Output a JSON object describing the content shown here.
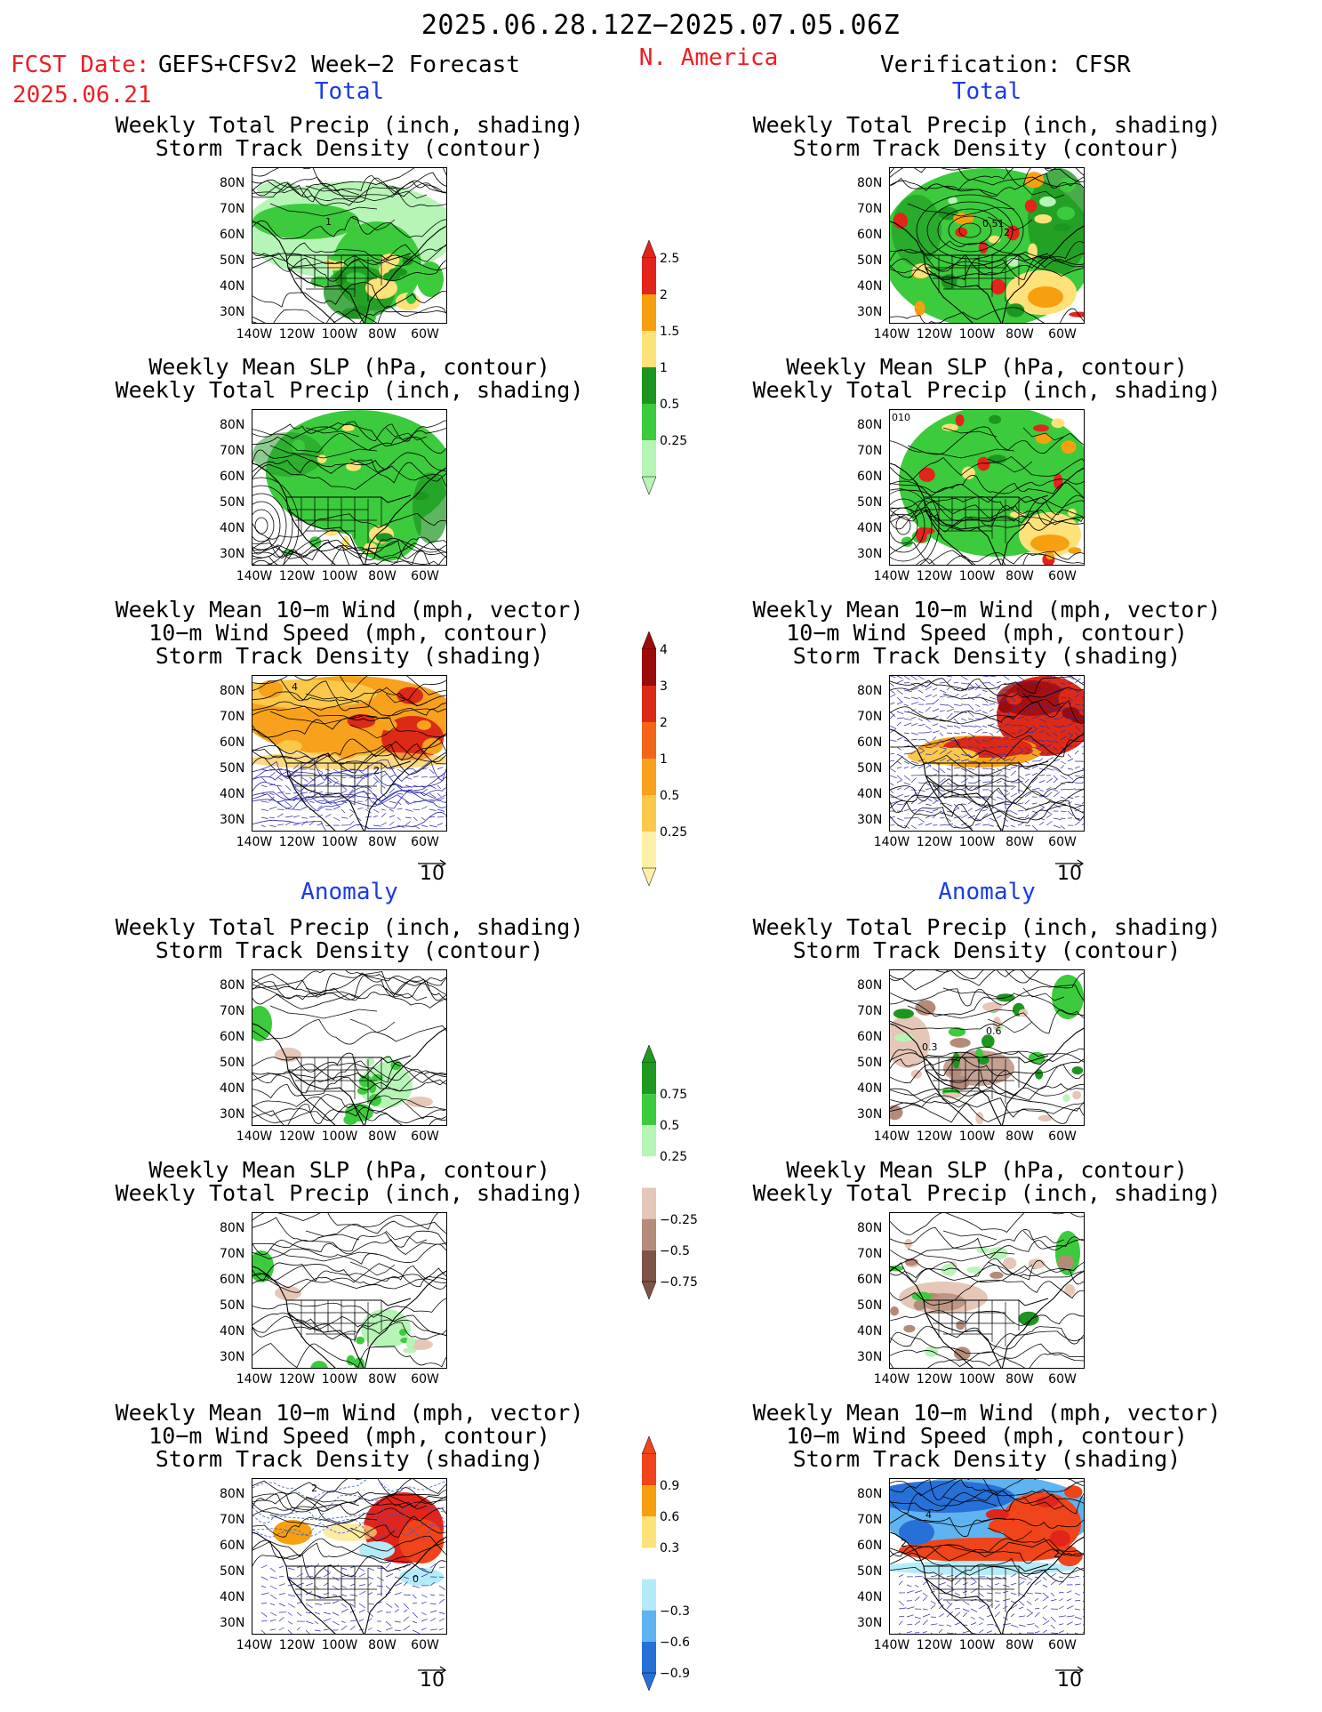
{
  "header": {
    "valid_range": "2025.06.28.12Z−2025.07.05.06Z",
    "fcst_label": "FCST Date:",
    "fcst_model": "GEFS+CFSv2 Week−2 Forecast",
    "fcst_date": "2025.06.21",
    "region": "N. America",
    "verification": "Verification: CFSR"
  },
  "sections": {
    "total": "Total",
    "anomaly": "Anomaly"
  },
  "titles": {
    "precip_track": [
      "Weekly Total Precip (inch, shading)",
      "Storm Track Density (contour)"
    ],
    "slp_precip": [
      "Weekly Mean SLP (hPa, contour)",
      "Weekly Total Precip (inch, shading)"
    ],
    "wind": [
      "Weekly Mean 10−m Wind (mph, vector)",
      "10−m Wind Speed (mph, contour)",
      "Storm Track Density (shading)"
    ]
  },
  "axes": {
    "lat_ticks": [
      "80N",
      "70N",
      "60N",
      "50N",
      "40N",
      "30N"
    ],
    "lon_ticks": [
      "140W",
      "120W",
      "100W",
      "80W",
      "60W"
    ]
  },
  "vector_ref": "10",
  "contour_labels": {
    "fc_total_precip": "1",
    "obs_total_precip_a": "0.51",
    "obs_total_precip_b": "2",
    "obs_total_slp": "010",
    "fc_total_wind_a": "4",
    "fc_total_wind_b": "2",
    "obs_anom_precip_a": "0.6",
    "obs_anom_precip_b": "0.3",
    "fc_anom_wind_a": "2",
    "fc_anom_wind_b": "0",
    "obs_anom_wind_a": "4",
    "obs_anom_wind_b": "2",
    "obs_anom_wind_c": "2"
  },
  "colorbars": {
    "precip_total": {
      "labels": [
        "2.5",
        "2",
        "1.5",
        "1",
        "0.5",
        "0.25"
      ],
      "colors": [
        "#e2241b",
        "#f6a00f",
        "#fde27a",
        "#1d961f",
        "#3ccb3c",
        "#b6f5b6"
      ]
    },
    "track_total": {
      "labels": [
        "4",
        "3",
        "2",
        "1",
        "0.5",
        "0.25"
      ],
      "colors": [
        "#9c0a0a",
        "#dd2a16",
        "#f3661a",
        "#f8a11c",
        "#fcc84a",
        "#fdf0a6"
      ]
    },
    "precip_anom": {
      "labels": [
        "0.75",
        "0.5",
        "0.25",
        "−0.25",
        "−0.5",
        "−0.75"
      ],
      "colors": [
        "#1d9a1f",
        "#3ccb3c",
        "#b6f5b6",
        "#ffffff",
        "#e6c6b7",
        "#b48a78",
        "#7d5446"
      ]
    },
    "track_anom": {
      "labels": [
        "0.9",
        "0.6",
        "0.3",
        "−0.3",
        "−0.6",
        "−0.9"
      ],
      "colors": [
        "#f0441a",
        "#f6a00f",
        "#fde27a",
        "#ffffff",
        "#b3ecf8",
        "#5fb3f0",
        "#2770d8"
      ]
    }
  },
  "palette": {
    "green_light": "#b6f5b6",
    "green": "#3ccb3c",
    "green_dark": "#1d961f",
    "yellow": "#fde27a",
    "orange": "#f6a00f",
    "red": "#e2241b",
    "brown_light": "#e6c6b7",
    "brown": "#b48a78",
    "blue_light": "#b3ecf8",
    "blue": "#5fb3f0",
    "blue_dark": "#2770d8",
    "track_orange": "#f8a11c",
    "track_light": "#fcc84a",
    "track_red": "#dd2a16"
  }
}
